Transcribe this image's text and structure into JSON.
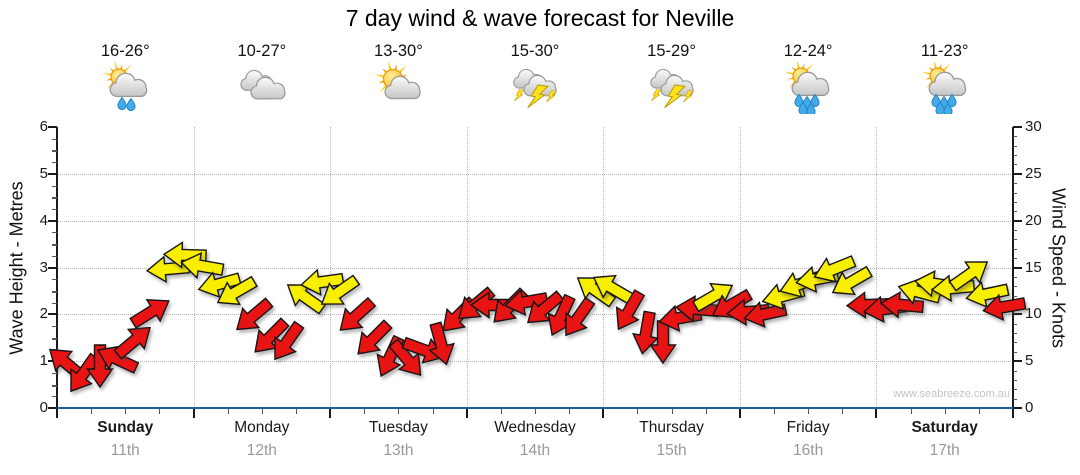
{
  "title": "7 day wind & wave forecast for Neville",
  "watermark": "www.seabreeze.com.au",
  "days": [
    {
      "name": "Sunday",
      "date": "11th",
      "temp": "16-26°",
      "icon": "showers-light",
      "weekend": true
    },
    {
      "name": "Monday",
      "date": "12th",
      "temp": "10-27°",
      "icon": "cloudy",
      "weekend": false
    },
    {
      "name": "Tuesday",
      "date": "13th",
      "temp": "13-30°",
      "icon": "partly-cloudy",
      "weekend": false
    },
    {
      "name": "Wednesday",
      "date": "14th",
      "temp": "15-30°",
      "icon": "thunderstorm",
      "weekend": false
    },
    {
      "name": "Thursday",
      "date": "15th",
      "temp": "15-29°",
      "icon": "thunderstorm",
      "weekend": false
    },
    {
      "name": "Friday",
      "date": "16th",
      "temp": "12-24°",
      "icon": "showers",
      "weekend": false
    },
    {
      "name": "Saturday",
      "date": "17th",
      "temp": "11-23°",
      "icon": "showers",
      "weekend": true
    }
  ],
  "axes": {
    "left_label": "Wave Height - Metres",
    "right_label": "Wind Speed - Knots",
    "left_ticks": [
      0,
      1,
      2,
      3,
      4,
      5,
      6
    ],
    "right_ticks": [
      0,
      5,
      10,
      15,
      20,
      25,
      30
    ]
  },
  "chart_data": {
    "type": "wind-arrow-timeseries",
    "title": "7 day wind & wave forecast for Neville",
    "x_axis": {
      "unit": "hours",
      "range": [
        0,
        168
      ],
      "day_width_hours": 24
    },
    "left_axis": {
      "label": "Wave Height - Metres",
      "range": [
        0,
        6
      ]
    },
    "right_axis": {
      "label": "Wind Speed - Knots",
      "range": [
        0,
        30
      ]
    },
    "grid": {
      "horizontal_every_metre": true,
      "vertical_at_day_boundaries": true
    },
    "arrow_colors": {
      "light_wind": "#e81414",
      "moderate_wind": "#f8ee00",
      "yellow_threshold_knots": 11.5
    },
    "point_format": [
      "hours_from_period_start",
      "wind_knots",
      "arrow_direction_deg_cw_from_east"
    ],
    "points": [
      [
        1.5,
        4.8,
        220
      ],
      [
        4.5,
        3.6,
        125
      ],
      [
        7.5,
        4.5,
        90
      ],
      [
        10.5,
        5.2,
        205
      ],
      [
        13.5,
        7.2,
        -40
      ],
      [
        16.5,
        10.2,
        -32
      ],
      [
        19.5,
        14.8,
        175
      ],
      [
        22.5,
        16.3,
        182
      ],
      [
        25.5,
        15.2,
        190
      ],
      [
        28.5,
        13.2,
        165
      ],
      [
        31.5,
        12.4,
        150
      ],
      [
        34.5,
        9.8,
        140
      ],
      [
        37.5,
        7.6,
        135
      ],
      [
        40.5,
        7.0,
        125
      ],
      [
        43.5,
        11.8,
        215
      ],
      [
        46.5,
        13.4,
        172
      ],
      [
        49.5,
        12.4,
        145
      ],
      [
        52.5,
        9.8,
        138
      ],
      [
        55.5,
        7.4,
        135
      ],
      [
        58.5,
        5.4,
        115
      ],
      [
        61.5,
        5.2,
        50
      ],
      [
        64.5,
        6.2,
        20
      ],
      [
        67.5,
        6.8,
        75
      ],
      [
        70.5,
        9.8,
        135
      ],
      [
        73.5,
        11.0,
        140
      ],
      [
        76.5,
        11.0,
        180
      ],
      [
        79.5,
        10.8,
        135
      ],
      [
        82.5,
        11.3,
        170
      ],
      [
        85.5,
        10.6,
        140
      ],
      [
        88.5,
        9.8,
        115
      ],
      [
        91.5,
        9.6,
        125
      ],
      [
        94.5,
        12.6,
        215
      ],
      [
        97.5,
        12.8,
        210
      ],
      [
        100.5,
        10.4,
        120
      ],
      [
        103.5,
        8.0,
        100
      ],
      [
        106.5,
        7.0,
        90
      ],
      [
        109.5,
        9.6,
        170
      ],
      [
        112.5,
        10.6,
        185
      ],
      [
        115.5,
        12.0,
        -30
      ],
      [
        118.5,
        11.0,
        150
      ],
      [
        121.5,
        10.2,
        175
      ],
      [
        124.5,
        10.0,
        168
      ],
      [
        127.5,
        12.0,
        165
      ],
      [
        130.5,
        13.2,
        160
      ],
      [
        133.5,
        13.8,
        170
      ],
      [
        136.5,
        14.8,
        158
      ],
      [
        139.5,
        13.4,
        150
      ],
      [
        142.5,
        11.0,
        178
      ],
      [
        145.5,
        10.6,
        172
      ],
      [
        148.5,
        11.0,
        185
      ],
      [
        151.5,
        12.4,
        195
      ],
      [
        154.5,
        13.2,
        188
      ],
      [
        157.5,
        12.8,
        175
      ],
      [
        160.5,
        14.3,
        -35
      ],
      [
        163.5,
        12.2,
        168
      ],
      [
        166.5,
        10.8,
        170
      ]
    ]
  }
}
